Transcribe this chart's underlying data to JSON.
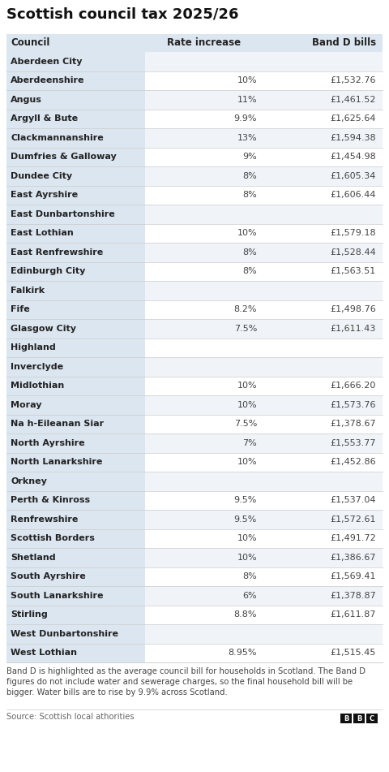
{
  "title": "Scottish council tax 2025/26",
  "col_headers": [
    "Council",
    "Rate increase",
    "Band D bills"
  ],
  "rows": [
    [
      "Aberdeen City",
      "",
      ""
    ],
    [
      "Aberdeenshire",
      "10%",
      "£1,532.76"
    ],
    [
      "Angus",
      "11%",
      "£1,461.52"
    ],
    [
      "Argyll & Bute",
      "9.9%",
      "£1,625.64"
    ],
    [
      "Clackmannanshire",
      "13%",
      "£1,594.38"
    ],
    [
      "Dumfries & Galloway",
      "9%",
      "£1,454.98"
    ],
    [
      "Dundee City",
      "8%",
      "£1,605.34"
    ],
    [
      "East Ayrshire",
      "8%",
      "£1,606.44"
    ],
    [
      "East Dunbartonshire",
      "",
      ""
    ],
    [
      "East Lothian",
      "10%",
      "£1,579.18"
    ],
    [
      "East Renfrewshire",
      "8%",
      "£1,528.44"
    ],
    [
      "Edinburgh City",
      "8%",
      "£1,563.51"
    ],
    [
      "Falkirk",
      "",
      ""
    ],
    [
      "Fife",
      "8.2%",
      "£1,498.76"
    ],
    [
      "Glasgow City",
      "7.5%",
      "£1,611.43"
    ],
    [
      "Highland",
      "",
      ""
    ],
    [
      "Inverclyde",
      "",
      ""
    ],
    [
      "Midlothian",
      "10%",
      "£1,666.20"
    ],
    [
      "Moray",
      "10%",
      "£1,573.76"
    ],
    [
      "Na h-Eileanan Siar",
      "7.5%",
      "£1,378.67"
    ],
    [
      "North Ayrshire",
      "7%",
      "£1,553.77"
    ],
    [
      "North Lanarkshire",
      "10%",
      "£1,452.86"
    ],
    [
      "Orkney",
      "",
      ""
    ],
    [
      "Perth & Kinross",
      "9.5%",
      "£1,537.04"
    ],
    [
      "Renfrewshire",
      "9.5%",
      "£1,572.61"
    ],
    [
      "Scottish Borders",
      "10%",
      "£1,491.72"
    ],
    [
      "Shetland",
      "10%",
      "£1,386.67"
    ],
    [
      "South Ayrshire",
      "8%",
      "£1,569.41"
    ],
    [
      "South Lanarkshire",
      "6%",
      "£1,378.87"
    ],
    [
      "Stirling",
      "8.8%",
      "£1,611.87"
    ],
    [
      "West Dunbartonshire",
      "",
      ""
    ],
    [
      "West Lothian",
      "8.95%",
      "£1,515.45"
    ]
  ],
  "footnote": "Band D is highlighted as the average council bill for households in Scotland. The Band D\nfigures do not include water and sewerage charges, so the final household bill will be\nbigger. Water bills are to rise by 9.9% across Scotland.",
  "source": "Source: Scottish local athorities",
  "header_bg": "#dce6f0",
  "council_col_bg": "#dce6f0",
  "row_bg_even": "#f0f4f8",
  "row_bg_odd": "#ffffff",
  "title_color": "#111111",
  "header_text_color": "#222222",
  "row_text_color": "#222222",
  "data_text_color": "#444444",
  "divider_color": "#cccccc",
  "footnote_color": "#444444",
  "source_color": "#666666",
  "title_fontsize": 13,
  "header_fontsize": 8.5,
  "row_fontsize": 8.0,
  "footnote_fontsize": 7.2,
  "source_fontsize": 7.2
}
